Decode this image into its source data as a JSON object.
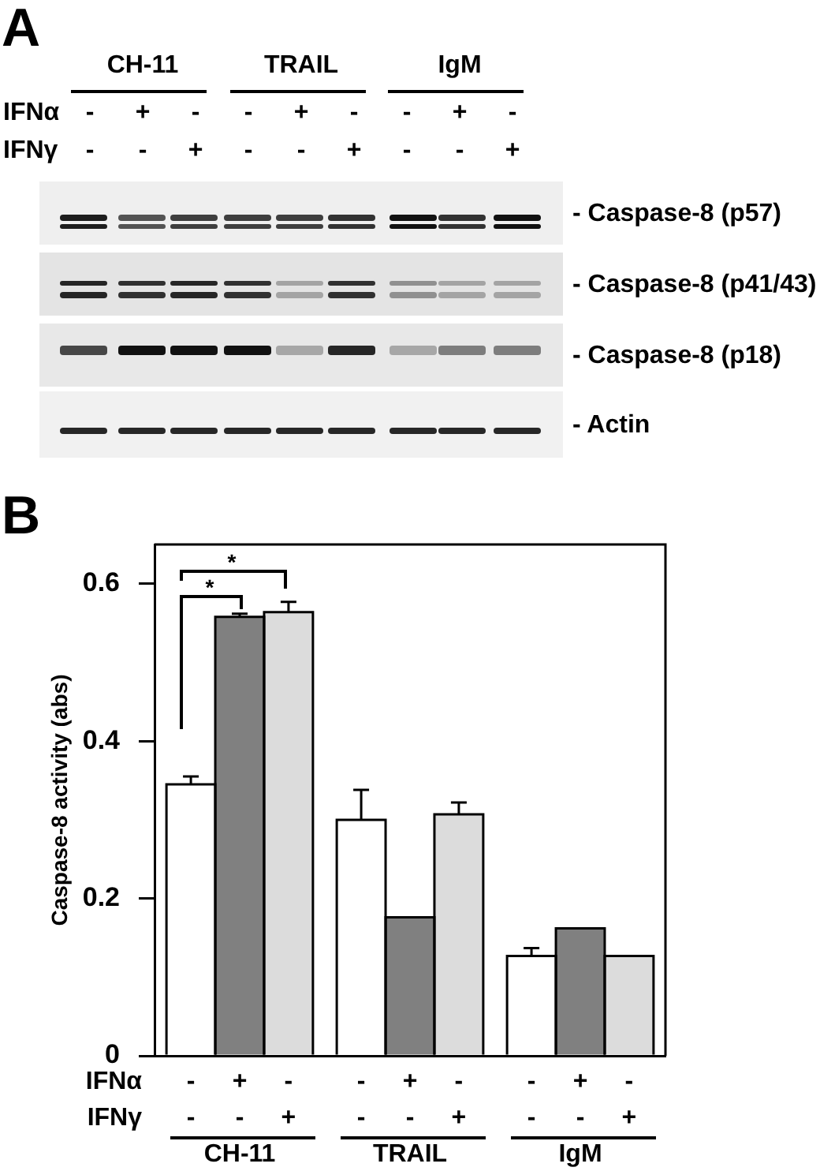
{
  "chart_data": [
    {
      "type": "other",
      "title": "A",
      "categories": [
        "CH-11",
        "TRAIL",
        "IgM"
      ],
      "annotations": [
        "IFNα",
        "- + - - + - - + -",
        "IFNγ",
        "- - + - - + - - +",
        "- Caspase-8 (p57)",
        "- Caspase-8 (p41/43)",
        "- Caspase-8 (p18)",
        "- Actin"
      ]
    },
    {
      "type": "bar",
      "title": "B",
      "ylabel": "Caspase-8 activity (abs)",
      "categories": [
        "CH-11",
        "TRAIL",
        "IgM"
      ],
      "series": [
        {
          "color": "#ffffff",
          "values": [
            0.345,
            0.3,
            0.127
          ],
          "errors": [
            0.01,
            0.038,
            0.01
          ]
        },
        {
          "color": "#808080",
          "values": [
            0.558,
            0.176,
            0.162
          ],
          "errors": [
            0.004,
            null,
            null
          ]
        },
        {
          "color": "#dcdcdc",
          "values": [
            0.564,
            0.307,
            0.127
          ],
          "errors": [
            0.013,
            0.015,
            null
          ]
        }
      ],
      "ylim": [
        0,
        0.65
      ],
      "yticks": [
        0,
        0.2,
        0.4,
        0.6
      ],
      "annotations": [
        "IFNα",
        "- + - - + - - + -",
        "IFNγ",
        "- - + - - + - - +",
        "*",
        "*"
      ]
    }
  ]
}
